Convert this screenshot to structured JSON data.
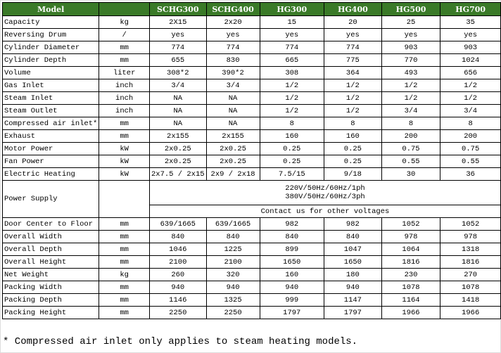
{
  "header": [
    "Model",
    "",
    "SCHG300",
    "SCHG400",
    "HG300",
    "HG400",
    "HG500",
    "HG700"
  ],
  "rows": [
    [
      "Capacity",
      "kg",
      "2X15",
      "2x20",
      "15",
      "20",
      "25",
      "35"
    ],
    [
      "Reversing Drum",
      "/",
      "yes",
      "yes",
      "yes",
      "yes",
      "yes",
      "yes"
    ],
    [
      "Cylinder Diameter",
      "mm",
      "774",
      "774",
      "774",
      "774",
      "903",
      "903"
    ],
    [
      "Cylinder Depth",
      "mm",
      "655",
      "830",
      "665",
      "775",
      "770",
      "1024"
    ],
    [
      "Volume",
      "liter",
      "308*2",
      "390*2",
      "308",
      "364",
      "493",
      "656"
    ],
    [
      "Gas Inlet",
      "inch",
      "3/4",
      "3/4",
      "1/2",
      "1/2",
      "1/2",
      "1/2"
    ],
    [
      "Steam Inlet",
      "inch",
      "NA",
      "NA",
      "1/2",
      "1/2",
      "1/2",
      "1/2"
    ],
    [
      "Steam Outlet",
      "inch",
      "NA",
      "NA",
      "1/2",
      "1/2",
      "3/4",
      "3/4"
    ],
    [
      "Compressed air inlet*",
      "mm",
      "NA",
      "NA",
      "8",
      "8",
      "8",
      "8"
    ],
    [
      "Exhaust",
      "mm",
      "2x155",
      "2x155",
      "160",
      "160",
      "200",
      "200"
    ],
    [
      "Motor Power",
      "kW",
      "2x0.25",
      "2x0.25",
      "0.25",
      "0.25",
      "0.75",
      "0.75"
    ],
    [
      "Fan Power",
      "kW",
      "2x0.25",
      "2x0.25",
      "0.25",
      "0.25",
      "0.55",
      "0.55"
    ],
    [
      "Electric Heating",
      "kW",
      "2x7.5 / 2x15",
      "2x9 / 2x18",
      "7.5/15",
      "9/18",
      "30",
      "36"
    ]
  ],
  "power_supply": {
    "label": "Power Supply",
    "line1": "220V/50Hz/60Hz/1ph",
    "line2": "380V/50Hz/60Hz/3ph",
    "contact": "Contact us for other voltages"
  },
  "rows2": [
    [
      "Door Center to Floor",
      "mm",
      "639/1665",
      "639/1665",
      "982",
      "982",
      "1052",
      "1052"
    ],
    [
      "Overall Width",
      "mm",
      "840",
      "840",
      "840",
      "840",
      "978",
      "978"
    ],
    [
      "Overall Depth",
      "mm",
      "1046",
      "1225",
      "899",
      "1047",
      "1064",
      "1318"
    ],
    [
      "Overall Height",
      "mm",
      "2100",
      "2100",
      "1650",
      "1650",
      "1816",
      "1816"
    ],
    [
      "Net Weight",
      "kg",
      "260",
      "320",
      "160",
      "180",
      "230",
      "270"
    ],
    [
      "Packing Width",
      "mm",
      "940",
      "940",
      "940",
      "940",
      "1078",
      "1078"
    ],
    [
      "Packing Depth",
      "mm",
      "1146",
      "1325",
      "999",
      "1147",
      "1164",
      "1418"
    ],
    [
      "Packing Height",
      "mm",
      "2250",
      "2250",
      "1797",
      "1797",
      "1966",
      "1966"
    ]
  ],
  "footnote": "* Compressed air inlet only applies to steam heating models.",
  "colors": {
    "header_bg": "#3a7a28",
    "header_text": "#ffffff"
  }
}
